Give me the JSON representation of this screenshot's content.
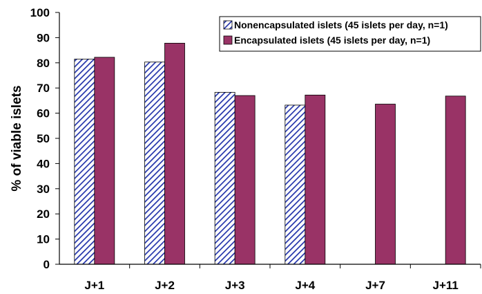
{
  "chart_data": {
    "type": "bar",
    "title": "",
    "xlabel": "",
    "ylabel": "% of viable islets",
    "ylim": [
      0,
      100
    ],
    "yticks": [
      0,
      10,
      20,
      30,
      40,
      50,
      60,
      70,
      80,
      90,
      100
    ],
    "categories": [
      "J+1",
      "J+2",
      "J+3",
      "J+4",
      "J+7",
      "J+11"
    ],
    "series": [
      {
        "name": "Nonencapsulated islets (45 islets per day, n=1)",
        "values": [
          81.5,
          80.3,
          68.3,
          63.2,
          null,
          null
        ],
        "color": "#2233aa",
        "pattern": "diagonal-hatch"
      },
      {
        "name": "Encapsulated islets (45 islets per day, n=1)",
        "values": [
          82.2,
          87.8,
          67.0,
          67.2,
          63.6,
          66.8
        ],
        "color": "#993366",
        "pattern": "solid"
      }
    ],
    "grid": false,
    "legend_position": "top-right"
  }
}
